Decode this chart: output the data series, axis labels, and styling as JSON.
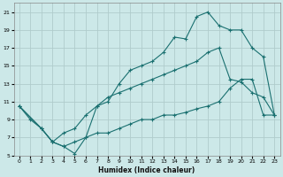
{
  "xlabel": "Humidex (Indice chaleur)",
  "background_color": "#cce8e8",
  "grid_color": "#b0cccc",
  "line_color": "#1a7070",
  "xlim": [
    -0.5,
    23.5
  ],
  "ylim": [
    5,
    22
  ],
  "xticks": [
    0,
    1,
    2,
    3,
    4,
    5,
    6,
    7,
    8,
    9,
    10,
    11,
    12,
    13,
    14,
    15,
    16,
    17,
    18,
    19,
    20,
    21,
    22,
    23
  ],
  "yticks": [
    5,
    7,
    9,
    11,
    13,
    15,
    17,
    19,
    21
  ],
  "curve1_x": [
    0,
    1,
    2,
    3,
    4,
    5,
    6,
    7,
    8,
    9,
    10,
    11,
    12,
    13,
    14,
    15,
    16,
    17,
    18,
    19,
    20,
    21,
    22,
    23
  ],
  "curve1_y": [
    10.5,
    9.0,
    8.0,
    6.5,
    6.0,
    5.2,
    7.0,
    10.5,
    11.0,
    13.0,
    14.5,
    15.0,
    15.5,
    16.5,
    18.2,
    18.0,
    20.5,
    21.0,
    19.5,
    19.0,
    19.0,
    17.0,
    16.0,
    9.5
  ],
  "curve2_x": [
    0,
    2,
    3,
    4,
    5,
    6,
    7,
    8,
    9,
    10,
    11,
    12,
    13,
    14,
    15,
    16,
    17,
    18,
    19,
    20,
    21,
    22,
    23
  ],
  "curve2_y": [
    10.5,
    8.0,
    6.5,
    7.5,
    8.0,
    9.5,
    10.5,
    11.5,
    12.0,
    12.5,
    13.0,
    13.5,
    14.0,
    14.5,
    15.0,
    15.5,
    16.5,
    17.0,
    13.5,
    13.2,
    12.0,
    11.5,
    9.5
  ],
  "curve3_x": [
    0,
    2,
    3,
    4,
    5,
    6,
    7,
    8,
    9,
    10,
    11,
    12,
    13,
    14,
    15,
    16,
    17,
    18,
    19,
    20,
    21,
    22,
    23
  ],
  "curve3_y": [
    10.5,
    8.0,
    6.5,
    6.0,
    6.5,
    7.0,
    7.5,
    7.5,
    8.0,
    8.5,
    9.0,
    9.0,
    9.5,
    9.5,
    9.8,
    10.2,
    10.5,
    11.0,
    12.5,
    13.5,
    13.5,
    9.5,
    9.5
  ]
}
